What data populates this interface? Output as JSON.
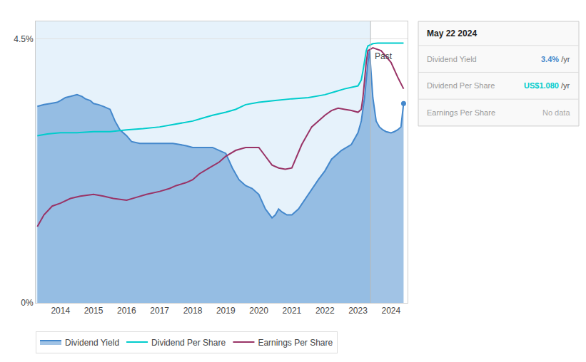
{
  "chart_data": {
    "type": "line",
    "xlim": [
      2013.25,
      2024.5
    ],
    "xticks": [
      2014,
      2015,
      2016,
      2017,
      2018,
      2019,
      2020,
      2021,
      2022,
      2023,
      2024
    ],
    "ylim": [
      0,
      4.8
    ],
    "yticks": [
      {
        "value": 0,
        "label": "0%"
      },
      {
        "value": 4.5,
        "label": "4.5%"
      }
    ],
    "grid": true,
    "legend": "bottom left",
    "series": [
      {
        "name": "Dividend Yield",
        "color": "#4488cc",
        "type": "area",
        "x": [
          2013.3,
          2013.5,
          2013.7,
          2013.9,
          2014.0,
          2014.15,
          2014.3,
          2014.5,
          2014.65,
          2014.75,
          2014.9,
          2015.0,
          2015.15,
          2015.3,
          2015.5,
          2015.65,
          2015.8,
          2016.0,
          2016.15,
          2016.4,
          2016.55,
          2016.7,
          2016.85,
          2017.0,
          2017.2,
          2017.4,
          2017.6,
          2017.8,
          2018.0,
          2018.2,
          2018.4,
          2018.6,
          2018.8,
          2019.0,
          2019.2,
          2019.4,
          2019.6,
          2019.8,
          2020.0,
          2020.2,
          2020.4,
          2020.5,
          2020.6,
          2020.7,
          2020.85,
          2021.0,
          2021.2,
          2021.5,
          2021.8,
          2022.0,
          2022.2,
          2022.5,
          2022.8,
          2023.0,
          2023.1,
          2023.15,
          2023.2,
          2023.25,
          2023.3,
          2023.35,
          2023.45,
          2023.55,
          2023.65,
          2023.75,
          2023.85,
          2024.0,
          2024.1,
          2024.2,
          2024.3,
          2024.38
        ],
        "values": [
          3.35,
          3.38,
          3.4,
          3.42,
          3.45,
          3.5,
          3.52,
          3.55,
          3.52,
          3.48,
          3.45,
          3.4,
          3.38,
          3.35,
          3.3,
          3.1,
          2.95,
          2.85,
          2.75,
          2.72,
          2.72,
          2.72,
          2.72,
          2.72,
          2.72,
          2.72,
          2.7,
          2.68,
          2.65,
          2.65,
          2.65,
          2.65,
          2.6,
          2.55,
          2.3,
          2.1,
          2.0,
          1.95,
          1.85,
          1.6,
          1.45,
          1.5,
          1.6,
          1.55,
          1.5,
          1.5,
          1.6,
          1.85,
          2.1,
          2.25,
          2.45,
          2.6,
          2.7,
          2.9,
          3.1,
          3.3,
          3.5,
          3.8,
          4.1,
          4.3,
          3.5,
          3.1,
          3.0,
          2.95,
          2.92,
          2.9,
          2.92,
          2.95,
          3.0,
          3.4
        ]
      },
      {
        "name": "Dividend Per Share",
        "color": "#00cccc",
        "type": "line",
        "x": [
          2013.3,
          2013.6,
          2014.0,
          2014.5,
          2015.0,
          2015.5,
          2016.0,
          2016.5,
          2017.0,
          2017.5,
          2018.0,
          2018.3,
          2018.6,
          2019.0,
          2019.3,
          2019.6,
          2020.0,
          2020.5,
          2021.0,
          2021.5,
          2022.0,
          2022.3,
          2022.6,
          2023.0,
          2023.1,
          2023.15,
          2023.2,
          2023.25,
          2023.3,
          2023.45,
          2023.6,
          2023.8,
          2024.0,
          2024.2,
          2024.38
        ],
        "values": [
          2.85,
          2.88,
          2.9,
          2.9,
          2.92,
          2.92,
          2.95,
          2.97,
          3.0,
          3.05,
          3.1,
          3.15,
          3.2,
          3.25,
          3.3,
          3.38,
          3.42,
          3.45,
          3.48,
          3.5,
          3.55,
          3.6,
          3.65,
          3.7,
          3.8,
          3.95,
          4.15,
          4.3,
          4.38,
          4.42,
          4.43,
          4.43,
          4.43,
          4.43,
          4.43
        ]
      },
      {
        "name": "Earnings Per Share",
        "color": "#993366",
        "type": "line",
        "x": [
          2013.3,
          2013.5,
          2013.75,
          2014.0,
          2014.3,
          2014.6,
          2015.0,
          2015.3,
          2015.6,
          2016.0,
          2016.3,
          2016.6,
          2017.0,
          2017.3,
          2017.5,
          2017.8,
          2018.0,
          2018.2,
          2018.5,
          2018.8,
          2019.0,
          2019.3,
          2019.6,
          2020.0,
          2020.2,
          2020.4,
          2020.6,
          2020.8,
          2021.0,
          2021.3,
          2021.6,
          2022.0,
          2022.2,
          2022.4,
          2022.6,
          2022.8,
          2023.0,
          2023.1,
          2023.15,
          2023.2,
          2023.25,
          2023.3,
          2023.45,
          2023.7,
          2024.0,
          2024.2,
          2024.38
        ],
        "values": [
          1.3,
          1.5,
          1.65,
          1.7,
          1.78,
          1.82,
          1.85,
          1.82,
          1.78,
          1.75,
          1.8,
          1.85,
          1.9,
          1.95,
          2.0,
          2.05,
          2.1,
          2.2,
          2.3,
          2.4,
          2.5,
          2.6,
          2.65,
          2.65,
          2.5,
          2.35,
          2.3,
          2.28,
          2.3,
          2.7,
          3.0,
          3.2,
          3.28,
          3.32,
          3.3,
          3.28,
          3.25,
          3.3,
          3.5,
          3.8,
          4.1,
          4.3,
          4.35,
          4.3,
          4.1,
          3.85,
          3.65
        ]
      }
    ],
    "annotations": [
      {
        "text": "Past",
        "x": 2023.38,
        "y": 4.32
      }
    ],
    "tooltip": {
      "title": "May 22 2024",
      "rows": [
        {
          "label": "Dividend Yield",
          "value": "3.4%",
          "unit": "/yr",
          "color": "#4488cc"
        },
        {
          "label": "Dividend Per Share",
          "value": "US$1.080",
          "unit": "/yr",
          "color": "#00cccc"
        },
        {
          "label": "Earnings Per Share",
          "value": "No data",
          "color": "#aaaaaa"
        }
      ]
    }
  }
}
